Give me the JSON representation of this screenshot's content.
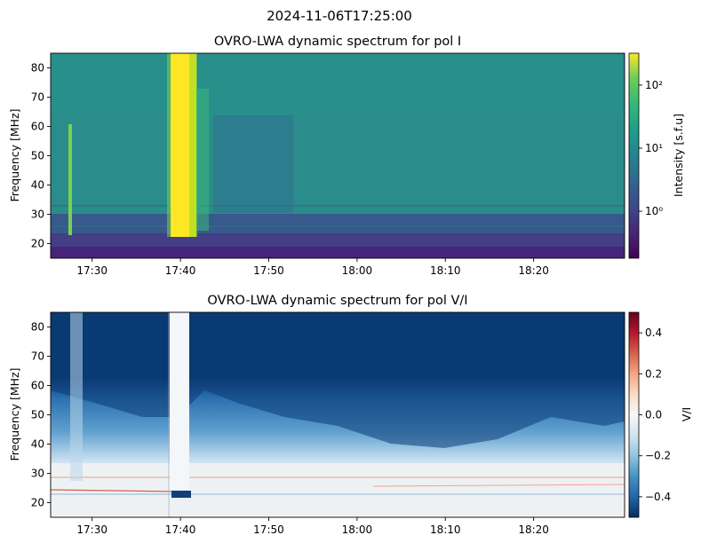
{
  "figure_title": "2024-11-06T17:25:00",
  "chart_data": [
    {
      "type": "heatmap",
      "title": "OVRO-LWA dynamic spectrum for pol I",
      "xlabel": "",
      "ylabel": "Frequency [MHz]",
      "x_ticks": [
        "17:30",
        "17:40",
        "17:50",
        "18:00",
        "18:10",
        "18:20"
      ],
      "x_range_minutes": [
        -4.7,
        60.3
      ],
      "x_tick_minutes": [
        0,
        10,
        20,
        30,
        40,
        50
      ],
      "ylim": [
        15,
        85
      ],
      "y_ticks": [
        20,
        30,
        40,
        50,
        60,
        70,
        80
      ],
      "colorbar": {
        "label": "Intensity [s.f.u]",
        "scale": "log",
        "range": [
          0.18,
          320
        ],
        "ticks": [
          1,
          10,
          100
        ],
        "tick_labels": [
          "10⁰",
          "10¹",
          "10²"
        ],
        "colormap": "viridis"
      },
      "features": [
        {
          "description": "bright burst",
          "time_start": "17:37:45",
          "time_end": "17:39:00",
          "freq_range": [
            22,
            85
          ]
        },
        {
          "description": "narrow burst",
          "time": "17:26:45",
          "freq_range": [
            23,
            62
          ]
        }
      ]
    },
    {
      "type": "heatmap",
      "title": "OVRO-LWA dynamic spectrum for pol V/I",
      "xlabel": "",
      "ylabel": "Frequency [MHz]",
      "x_ticks": [
        "17:30",
        "17:40",
        "17:50",
        "18:00",
        "18:10",
        "18:20"
      ],
      "x_range_minutes": [
        -4.7,
        60.3
      ],
      "x_tick_minutes": [
        0,
        10,
        20,
        30,
        40,
        50
      ],
      "ylim": [
        15,
        85
      ],
      "y_ticks": [
        20,
        30,
        40,
        50,
        60,
        70,
        80
      ],
      "colorbar": {
        "label": "V/I",
        "scale": "linear",
        "range": [
          -0.5,
          0.5
        ],
        "ticks": [
          -0.4,
          -0.2,
          0.0,
          0.2,
          0.4
        ],
        "tick_labels": [
          "−0.4",
          "−0.2",
          "0.0",
          "0.2",
          "0.4"
        ],
        "colormap": "RdBu_r"
      }
    }
  ]
}
